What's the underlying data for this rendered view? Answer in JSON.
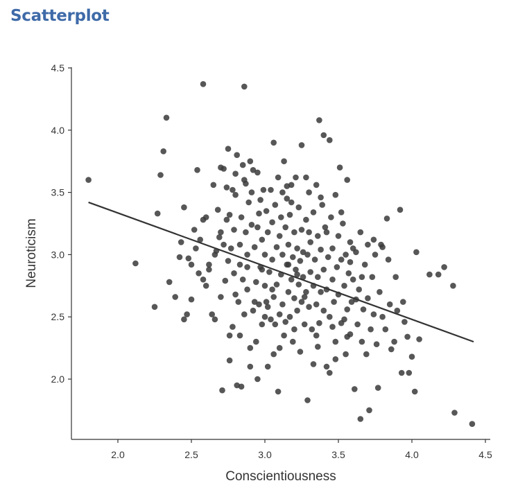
{
  "page": {
    "title": "Scatterplot"
  },
  "chart_data": {
    "type": "scatter",
    "xlabel": "Conscientiousness",
    "ylabel": "Neuroticism",
    "xlim": [
      1.65,
      4.55
    ],
    "ylim": [
      1.5,
      4.5
    ],
    "x_ticks": [
      2.0,
      2.5,
      3.0,
      3.5,
      4.0,
      4.5
    ],
    "x_tick_labels": [
      "2.0",
      "2.5",
      "3.0",
      "3.5",
      "4.0",
      "4.5"
    ],
    "y_ticks": [
      2.0,
      2.5,
      3.0,
      3.5,
      4.0,
      4.5
    ],
    "y_tick_labels": [
      "2.0",
      "2.5",
      "3.0",
      "3.5",
      "4.0",
      "4.5"
    ],
    "grid": false,
    "legend": "none",
    "point_color": "#3a3a3a",
    "line_color": "#333333",
    "regression_line": {
      "x": [
        1.8,
        4.42
      ],
      "y": [
        3.42,
        2.3
      ]
    },
    "points": [
      [
        1.8,
        3.6
      ],
      [
        2.12,
        2.93
      ],
      [
        2.25,
        2.58
      ],
      [
        2.27,
        3.33
      ],
      [
        2.29,
        3.64
      ],
      [
        2.31,
        3.83
      ],
      [
        2.33,
        4.1
      ],
      [
        2.35,
        2.78
      ],
      [
        2.39,
        2.66
      ],
      [
        2.42,
        2.98
      ],
      [
        2.43,
        3.1
      ],
      [
        2.45,
        3.38
      ],
      [
        2.45,
        2.48
      ],
      [
        2.47,
        2.52
      ],
      [
        2.48,
        2.97
      ],
      [
        2.5,
        2.64
      ],
      [
        2.5,
        2.92
      ],
      [
        2.52,
        3.2
      ],
      [
        2.54,
        3.68
      ],
      [
        2.55,
        2.85
      ],
      [
        2.56,
        3.12
      ],
      [
        2.58,
        3.28
      ],
      [
        2.58,
        4.37
      ],
      [
        2.6,
        2.75
      ],
      [
        2.6,
        3.3
      ],
      [
        2.62,
        2.92
      ],
      [
        2.62,
        2.88
      ],
      [
        2.64,
        2.52
      ],
      [
        2.65,
        3.56
      ],
      [
        2.66,
        2.48
      ],
      [
        2.67,
        3.03
      ],
      [
        2.68,
        3.36
      ],
      [
        2.69,
        3.14
      ],
      [
        2.7,
        3.7
      ],
      [
        2.7,
        2.66
      ],
      [
        2.71,
        1.91
      ],
      [
        2.72,
        3.08
      ],
      [
        2.72,
        3.69
      ],
      [
        2.73,
        2.79
      ],
      [
        2.74,
        3.28
      ],
      [
        2.74,
        3.54
      ],
      [
        2.75,
        2.95
      ],
      [
        2.75,
        3.85
      ],
      [
        2.76,
        2.35
      ],
      [
        2.76,
        2.15
      ],
      [
        2.77,
        3.05
      ],
      [
        2.78,
        3.52
      ],
      [
        2.78,
        2.42
      ],
      [
        2.79,
        3.2
      ],
      [
        2.79,
        2.85
      ],
      [
        2.8,
        3.48
      ],
      [
        2.8,
        3.65
      ],
      [
        2.8,
        2.68
      ],
      [
        2.81,
        1.95
      ],
      [
        2.81,
        3.8
      ],
      [
        2.82,
        2.62
      ],
      [
        2.83,
        2.35
      ],
      [
        2.83,
        3.08
      ],
      [
        2.84,
        3.3
      ],
      [
        2.84,
        1.94
      ],
      [
        2.85,
        3.72
      ],
      [
        2.85,
        2.8
      ],
      [
        2.86,
        2.52
      ],
      [
        2.86,
        4.35
      ],
      [
        2.87,
        3.18
      ],
      [
        2.87,
        3.57
      ],
      [
        2.88,
        2.9
      ],
      [
        2.88,
        3.0
      ],
      [
        2.88,
        2.72
      ],
      [
        2.89,
        3.42
      ],
      [
        2.9,
        3.75
      ],
      [
        2.9,
        2.25
      ],
      [
        2.91,
        3.5
      ],
      [
        2.91,
        3.24
      ],
      [
        2.92,
        2.55
      ],
      [
        2.92,
        3.68
      ],
      [
        2.93,
        3.06
      ],
      [
        2.94,
        2.78
      ],
      [
        2.94,
        2.3
      ],
      [
        2.95,
        3.22
      ],
      [
        2.95,
        2.0
      ],
      [
        2.96,
        3.33
      ],
      [
        2.96,
        2.6
      ],
      [
        2.97,
        2.9
      ],
      [
        2.98,
        3.12
      ],
      [
        2.98,
        2.44
      ],
      [
        2.99,
        3.52
      ],
      [
        3.0,
        2.75
      ],
      [
        3.0,
        3.0
      ],
      [
        3.01,
        3.35
      ],
      [
        3.01,
        2.62
      ],
      [
        3.02,
        3.18
      ],
      [
        3.02,
        2.1
      ],
      [
        3.03,
        2.86
      ],
      [
        3.04,
        3.52
      ],
      [
        3.04,
        2.48
      ],
      [
        3.05,
        3.26
      ],
      [
        3.05,
        2.96
      ],
      [
        3.06,
        2.66
      ],
      [
        3.06,
        2.2
      ],
      [
        3.07,
        3.4
      ],
      [
        3.08,
        3.06
      ],
      [
        3.08,
        2.76
      ],
      [
        3.09,
        3.62
      ],
      [
        3.09,
        1.9
      ],
      [
        3.1,
        3.15
      ],
      [
        3.1,
        2.52
      ],
      [
        3.11,
        2.84
      ],
      [
        3.11,
        3.3
      ],
      [
        3.12,
        3.0
      ],
      [
        3.12,
        2.6
      ],
      [
        3.13,
        3.75
      ],
      [
        3.13,
        2.35
      ],
      [
        3.14,
        3.22
      ],
      [
        3.15,
        2.92
      ],
      [
        3.15,
        3.45
      ],
      [
        3.16,
        2.7
      ],
      [
        3.16,
        3.08
      ],
      [
        3.17,
        2.5
      ],
      [
        3.17,
        3.32
      ],
      [
        3.18,
        2.8
      ],
      [
        3.18,
        3.56
      ],
      [
        3.19,
        2.98
      ],
      [
        3.19,
        2.3
      ],
      [
        3.2,
        3.18
      ],
      [
        3.2,
        2.65
      ],
      [
        3.21,
        2.88
      ],
      [
        3.21,
        3.62
      ],
      [
        3.22,
        3.05
      ],
      [
        3.22,
        2.55
      ],
      [
        3.23,
        2.76
      ],
      [
        3.23,
        3.38
      ],
      [
        3.24,
        2.95
      ],
      [
        3.25,
        2.62
      ],
      [
        3.25,
        3.2
      ],
      [
        3.26,
        2.82
      ],
      [
        3.26,
        3.02
      ],
      [
        3.27,
        2.44
      ],
      [
        3.28,
        3.28
      ],
      [
        3.28,
        2.7
      ],
      [
        3.29,
        1.83
      ],
      [
        3.29,
        3.0
      ],
      [
        3.3,
        2.58
      ],
      [
        3.3,
        3.5
      ],
      [
        3.31,
        2.86
      ],
      [
        3.31,
        3.1
      ],
      [
        3.32,
        2.4
      ],
      [
        3.33,
        2.75
      ],
      [
        3.33,
        3.34
      ],
      [
        3.34,
        2.96
      ],
      [
        3.35,
        2.6
      ],
      [
        3.35,
        3.56
      ],
      [
        3.36,
        2.82
      ],
      [
        3.36,
        3.15
      ],
      [
        3.37,
        2.45
      ],
      [
        3.37,
        4.08
      ],
      [
        3.38,
        2.7
      ],
      [
        3.38,
        3.04
      ],
      [
        3.39,
        3.4
      ],
      [
        3.4,
        2.88
      ],
      [
        3.4,
        2.55
      ],
      [
        3.41,
        3.22
      ],
      [
        3.42,
        2.72
      ],
      [
        3.42,
        2.1
      ],
      [
        3.43,
        2.98
      ],
      [
        3.44,
        3.92
      ],
      [
        3.44,
        2.5
      ],
      [
        3.45,
        3.3
      ],
      [
        3.46,
        2.8
      ],
      [
        3.46,
        3.05
      ],
      [
        3.47,
        2.62
      ],
      [
        3.48,
        3.48
      ],
      [
        3.48,
        2.3
      ],
      [
        3.49,
        2.9
      ],
      [
        3.5,
        3.15
      ],
      [
        3.5,
        2.68
      ],
      [
        3.51,
        3.7
      ],
      [
        3.52,
        2.45
      ],
      [
        3.52,
        2.96
      ],
      [
        3.53,
        3.25
      ],
      [
        3.54,
        2.75
      ],
      [
        3.55,
        2.2
      ],
      [
        3.55,
        3.0
      ],
      [
        3.56,
        2.56
      ],
      [
        3.56,
        3.6
      ],
      [
        3.57,
        2.85
      ],
      [
        3.58,
        2.36
      ],
      [
        3.58,
        3.1
      ],
      [
        3.59,
        2.62
      ],
      [
        3.6,
        2.8
      ],
      [
        3.61,
        1.92
      ],
      [
        3.62,
        3.02
      ],
      [
        3.63,
        2.44
      ],
      [
        3.64,
        2.72
      ],
      [
        3.65,
        1.68
      ],
      [
        3.65,
        3.18
      ],
      [
        3.66,
        2.3
      ],
      [
        3.67,
        2.56
      ],
      [
        3.68,
        2.92
      ],
      [
        3.69,
        2.2
      ],
      [
        3.7,
        2.65
      ],
      [
        3.7,
        3.08
      ],
      [
        3.71,
        1.75
      ],
      [
        3.72,
        2.4
      ],
      [
        3.73,
        2.82
      ],
      [
        3.74,
        2.52
      ],
      [
        3.75,
        3.0
      ],
      [
        3.76,
        2.28
      ],
      [
        3.77,
        1.93
      ],
      [
        3.78,
        2.7
      ],
      [
        3.79,
        3.08
      ],
      [
        3.8,
        2.5
      ],
      [
        3.82,
        2.4
      ],
      [
        3.83,
        3.29
      ],
      [
        3.85,
        2.6
      ],
      [
        3.86,
        2.24
      ],
      [
        3.88,
        2.3
      ],
      [
        3.9,
        2.55
      ],
      [
        3.92,
        3.36
      ],
      [
        3.93,
        2.05
      ],
      [
        3.94,
        2.62
      ],
      [
        3.95,
        2.46
      ],
      [
        3.97,
        2.34
      ],
      [
        3.98,
        2.05
      ],
      [
        4.0,
        2.18
      ],
      [
        4.02,
        1.9
      ],
      [
        4.03,
        3.02
      ],
      [
        4.05,
        2.32
      ],
      [
        4.12,
        2.84
      ],
      [
        4.18,
        2.84
      ],
      [
        4.22,
        2.9
      ],
      [
        4.28,
        2.75
      ],
      [
        4.29,
        1.73
      ],
      [
        4.41,
        1.64
      ],
      [
        2.98,
        2.88
      ],
      [
        3.02,
        2.58
      ],
      [
        3.14,
        2.46
      ],
      [
        3.24,
        2.22
      ],
      [
        3.33,
        2.12
      ],
      [
        3.44,
        2.05
      ],
      [
        3.54,
        2.48
      ],
      [
        3.66,
        2.82
      ],
      [
        3.48,
        2.16
      ],
      [
        3.27,
        2.66
      ],
      [
        3.07,
        2.44
      ],
      [
        2.93,
        2.62
      ],
      [
        3.18,
        3.42
      ],
      [
        3.38,
        3.46
      ],
      [
        3.28,
        3.62
      ],
      [
        3.12,
        3.5
      ],
      [
        2.97,
        3.44
      ],
      [
        2.86,
        3.6
      ],
      [
        3.36,
        2.26
      ],
      [
        3.46,
        2.42
      ],
      [
        3.58,
        2.94
      ],
      [
        3.62,
        2.64
      ],
      [
        3.22,
        2.84
      ],
      [
        3.16,
        2.92
      ],
      [
        3.05,
        2.72
      ],
      [
        2.83,
        2.92
      ],
      [
        2.76,
        3.32
      ],
      [
        3.42,
        3.18
      ],
      [
        3.52,
        3.34
      ],
      [
        3.56,
        2.34
      ],
      [
        3.06,
        3.9
      ],
      [
        3.25,
        3.88
      ],
      [
        3.4,
        3.96
      ],
      [
        3.6,
        3.05
      ],
      [
        3.74,
        3.12
      ],
      [
        3.8,
        3.06
      ],
      [
        3.84,
        2.96
      ],
      [
        3.89,
        2.82
      ],
      [
        2.66,
        3.0
      ],
      [
        2.58,
        2.8
      ],
      [
        2.53,
        3.05
      ],
      [
        2.7,
        3.18
      ],
      [
        2.95,
        3.66
      ],
      [
        3.15,
        3.55
      ],
      [
        3.3,
        3.18
      ],
      [
        3.35,
        2.35
      ],
      [
        3.2,
        2.4
      ],
      [
        3.0,
        2.5
      ],
      [
        2.9,
        2.1
      ],
      [
        3.1,
        2.25
      ]
    ]
  }
}
